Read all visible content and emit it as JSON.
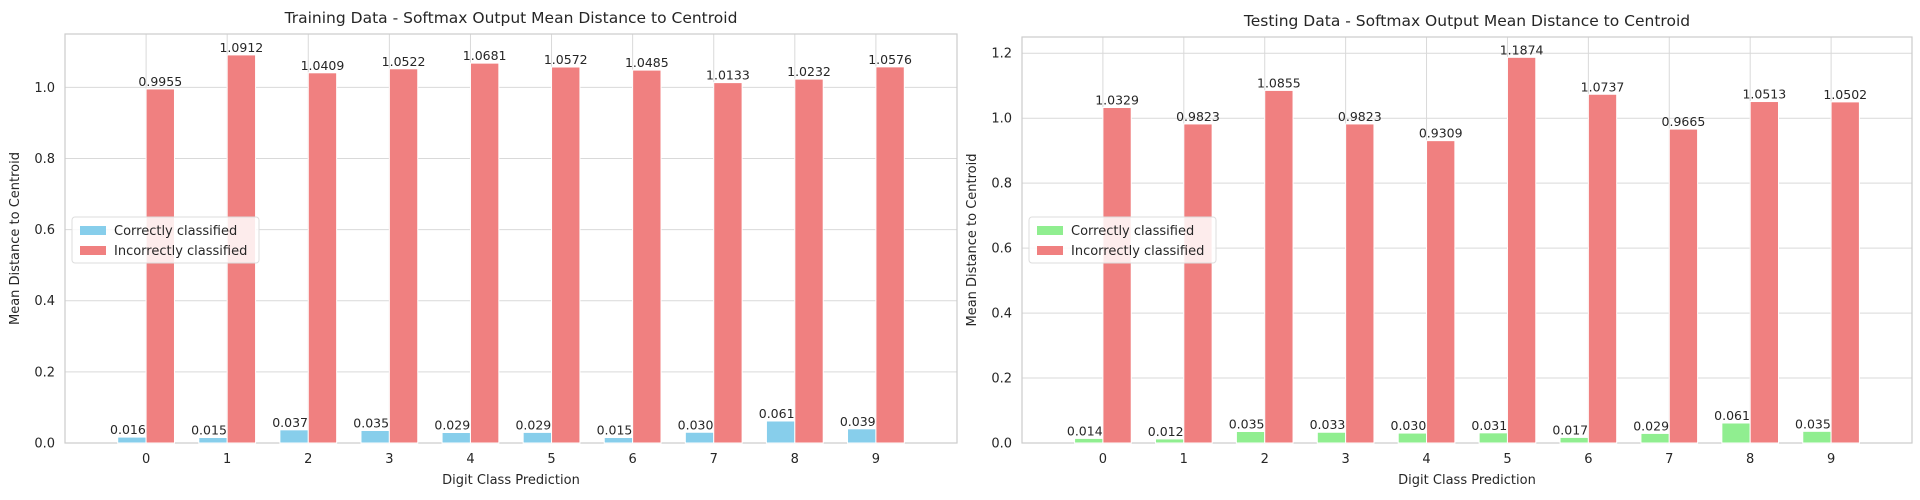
{
  "chart_data": [
    {
      "type": "bar",
      "title": "Training Data - Softmax Output Mean Distance to Centroid",
      "xlabel": "Digit Class Prediction",
      "ylabel": "Mean Distance to Centroid",
      "categories": [
        "0",
        "1",
        "2",
        "3",
        "4",
        "5",
        "6",
        "7",
        "8",
        "9"
      ],
      "ylim": [
        0,
        1.15
      ],
      "yticks": [
        "0.0",
        "0.2",
        "0.4",
        "0.6",
        "0.8",
        "1.0"
      ],
      "grid": true,
      "legend_position": "center-left",
      "series": [
        {
          "name": "Correctly classified",
          "color": "#87ceeb",
          "values": [
            0.0166,
            0.0154,
            0.037,
            0.0352,
            0.0295,
            0.0298,
            0.0154,
            0.0302,
            0.0619,
            0.0399
          ],
          "labels": [
            "0.0166",
            "0.0154",
            "0.0370",
            "0.0352",
            "0.0295",
            "0.0298",
            "0.0154",
            "0.0302",
            "0.0619",
            "0.0399"
          ]
        },
        {
          "name": "Incorrectly classified",
          "color": "#f08080",
          "values": [
            0.9955,
            1.0912,
            1.0409,
            1.0522,
            1.0681,
            1.0572,
            1.0485,
            1.0133,
            1.0232,
            1.0576
          ],
          "labels": [
            "0.9955",
            "1.0912",
            "1.0409",
            "1.0522",
            "1.0681",
            "1.0572",
            "1.0485",
            "1.0133",
            "1.0232",
            "1.0576"
          ]
        }
      ]
    },
    {
      "type": "bar",
      "title": "Testing Data - Softmax Output Mean Distance to Centroid",
      "xlabel": "Digit Class Prediction",
      "ylabel": "Mean Distance to Centroid",
      "categories": [
        "0",
        "1",
        "2",
        "3",
        "4",
        "5",
        "6",
        "7",
        "8",
        "9"
      ],
      "ylim": [
        0,
        1.25
      ],
      "yticks": [
        "0.0",
        "0.2",
        "0.4",
        "0.6",
        "0.8",
        "1.0",
        "1.2"
      ],
      "grid": true,
      "legend_position": "center-left",
      "series": [
        {
          "name": "Correctly classified",
          "color": "#90ee90",
          "values": [
            0.0141,
            0.0126,
            0.0354,
            0.0331,
            0.0306,
            0.0313,
            0.0172,
            0.0295,
            0.0616,
            0.0359
          ],
          "labels": [
            "0.0141",
            "0.0126",
            "0.0354",
            "0.0331",
            "0.0306",
            "0.0313",
            "0.0172",
            "0.0295",
            "0.0616",
            "0.0359"
          ]
        },
        {
          "name": "Incorrectly classified",
          "color": "#f08080",
          "values": [
            1.0329,
            0.9823,
            1.0855,
            0.9823,
            0.9309,
            1.1874,
            1.0737,
            0.9665,
            1.0513,
            1.0502
          ],
          "labels": [
            "1.0329",
            "0.9823",
            "1.0855",
            "0.9823",
            "0.9309",
            "1.1874",
            "1.0737",
            "0.9665",
            "1.0513",
            "1.0502"
          ]
        }
      ]
    }
  ]
}
